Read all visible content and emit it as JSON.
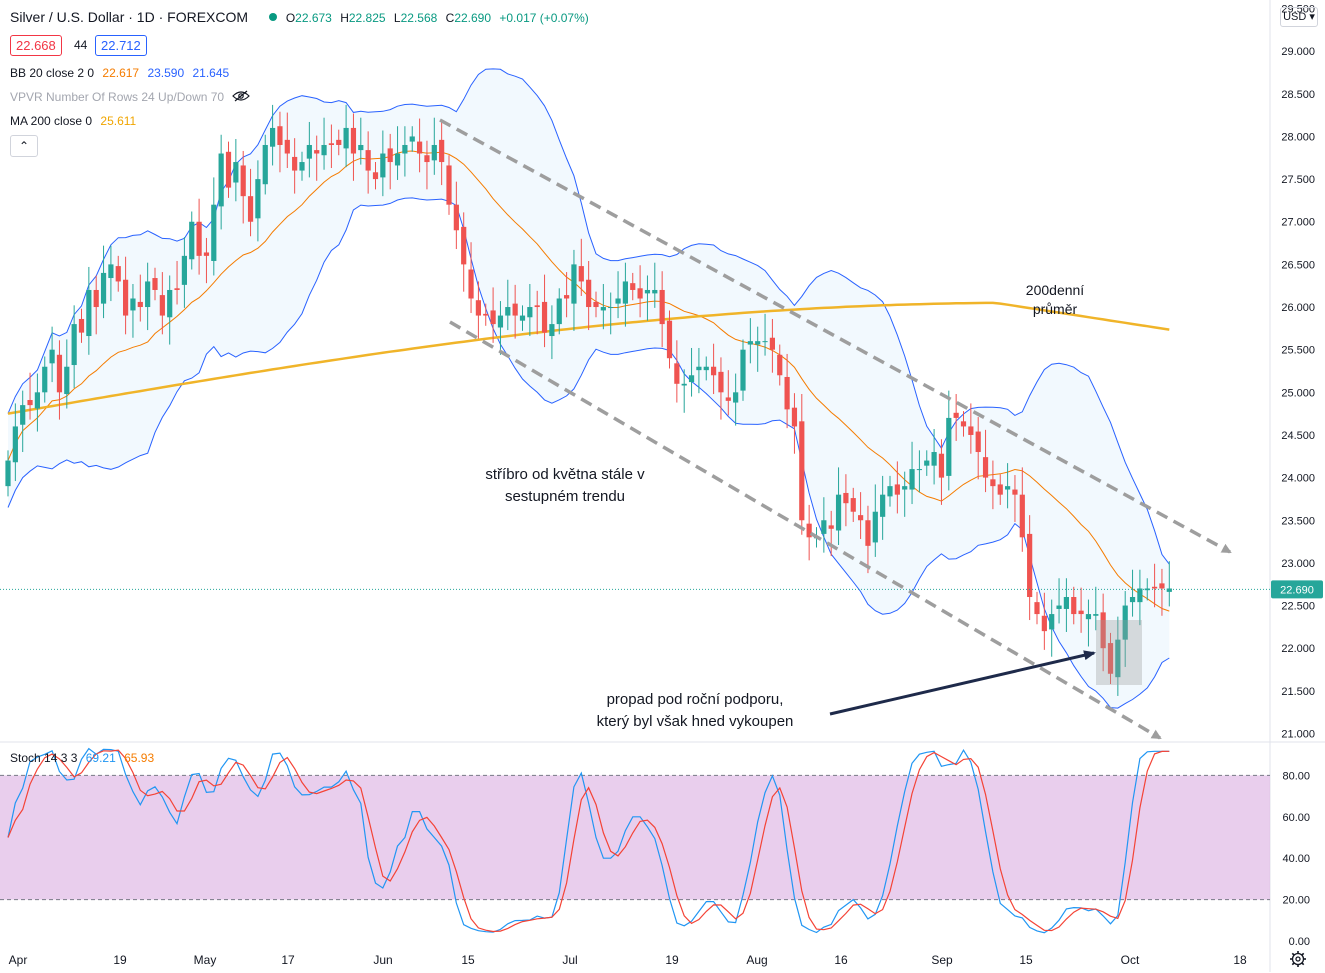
{
  "header": {
    "symbol": "Silver / U.S. Dollar · 1D · FOREXCOM",
    "ohlc": {
      "o_label": "O",
      "o": "22.673",
      "h_label": "H",
      "h": "22.825",
      "l_label": "L",
      "l": "22.568",
      "c_label": "C",
      "c": "22.690",
      "change": "+0.017 (+0.07%)"
    },
    "sell_price": "22.668",
    "spread": "44",
    "buy_price": "22.712",
    "currency": "USD"
  },
  "indicators": {
    "bb": {
      "label": "BB 20 close 2 0",
      "basis": "22.617",
      "upper": "23.590",
      "lower": "21.645"
    },
    "vpvr": {
      "label": "VPVR Number Of Rows 24 Up/Down 70"
    },
    "ma": {
      "label": "MA 200 close 0",
      "value": "25.611"
    },
    "stoch": {
      "label": "Stoch 14 3 3",
      "k": "69.21",
      "d": "65.93"
    }
  },
  "annotations": {
    "trend": [
      "stříbro od května stále v",
      "sestupném trendu"
    ],
    "ma200": [
      "200denní",
      "průměr"
    ],
    "support": [
      "propad pod roční podporu,",
      "který byl však hned vykoupen"
    ]
  },
  "colors": {
    "up": "#26a69a",
    "down": "#ef5350",
    "bb_band": "#2962ff",
    "bb_basis": "#f57c00",
    "ma": "#f0b429",
    "stoch_k": "#2196f3",
    "stoch_d": "#f44336",
    "stoch_bg": "#e1bee7"
  },
  "chart_data": {
    "type": "candlestick",
    "price_axis": {
      "min": 20.9,
      "max": 29.6,
      "ticks": [
        "29.500",
        "29.000",
        "28.500",
        "28.000",
        "27.500",
        "27.000",
        "26.500",
        "26.000",
        "25.500",
        "25.000",
        "24.500",
        "24.000",
        "23.500",
        "23.000",
        "22.500",
        "22.000",
        "21.500",
        "21.000"
      ],
      "last_price": "22.690"
    },
    "stoch_axis": {
      "ticks": [
        "80.00",
        "60.00",
        "40.00",
        "20.00",
        "0.00"
      ]
    },
    "x_labels": [
      "Apr",
      "19",
      "May",
      "17",
      "Jun",
      "15",
      "Jul",
      "19",
      "Aug",
      "16",
      "Sep",
      "15",
      "Oct",
      "18"
    ],
    "close": [
      24.2,
      24.6,
      24.85,
      24.85,
      25.0,
      25.3,
      25.5,
      25.0,
      25.3,
      25.8,
      25.7,
      26.2,
      26.0,
      26.4,
      26.5,
      26.3,
      25.9,
      26.1,
      26.0,
      26.3,
      26.2,
      25.9,
      26.2,
      26.2,
      26.6,
      27.0,
      26.6,
      26.6,
      27.2,
      27.8,
      27.4,
      27.7,
      27.3,
      27.0,
      27.5,
      27.9,
      28.1,
      27.9,
      27.8,
      27.6,
      27.7,
      27.9,
      27.8,
      27.9,
      27.9,
      27.9,
      28.1,
      27.8,
      27.9,
      27.6,
      27.5,
      27.8,
      27.7,
      27.8,
      27.9,
      28.0,
      27.8,
      27.7,
      27.9,
      27.7,
      27.2,
      26.9,
      26.5,
      26.1,
      25.9,
      25.9,
      25.8,
      25.9,
      26.0,
      25.9,
      25.9,
      26.0,
      26.0,
      25.7,
      25.8,
      26.1,
      26.1,
      26.5,
      26.3,
      26.0,
      26.0,
      26.0,
      26.0,
      26.1,
      26.3,
      26.2,
      26.1,
      26.2,
      26.2,
      25.8,
      25.4,
      25.1,
      25.1,
      25.2,
      25.3,
      25.3,
      25.2,
      25.0,
      24.9,
      25.0,
      25.5,
      25.6,
      25.6,
      25.6,
      25.5,
      25.2,
      24.8,
      24.6,
      23.5,
      23.3,
      23.3,
      23.5,
      23.4,
      23.8,
      23.7,
      23.6,
      23.5,
      23.2,
      23.6,
      23.8,
      23.9,
      23.8,
      23.9,
      24.1,
      24.1,
      24.2,
      24.3,
      24.0,
      24.7,
      24.7,
      24.6,
      24.5,
      24.3,
      24.0,
      23.9,
      23.8,
      23.9,
      23.8,
      23.3,
      22.6,
      22.4,
      22.2,
      22.4,
      22.5,
      22.6,
      22.4,
      22.4,
      22.4,
      22.4,
      22.0,
      21.7,
      22.1,
      22.5,
      22.6,
      22.7,
      22.7,
      22.7,
      22.7,
      22.7
    ]
  }
}
